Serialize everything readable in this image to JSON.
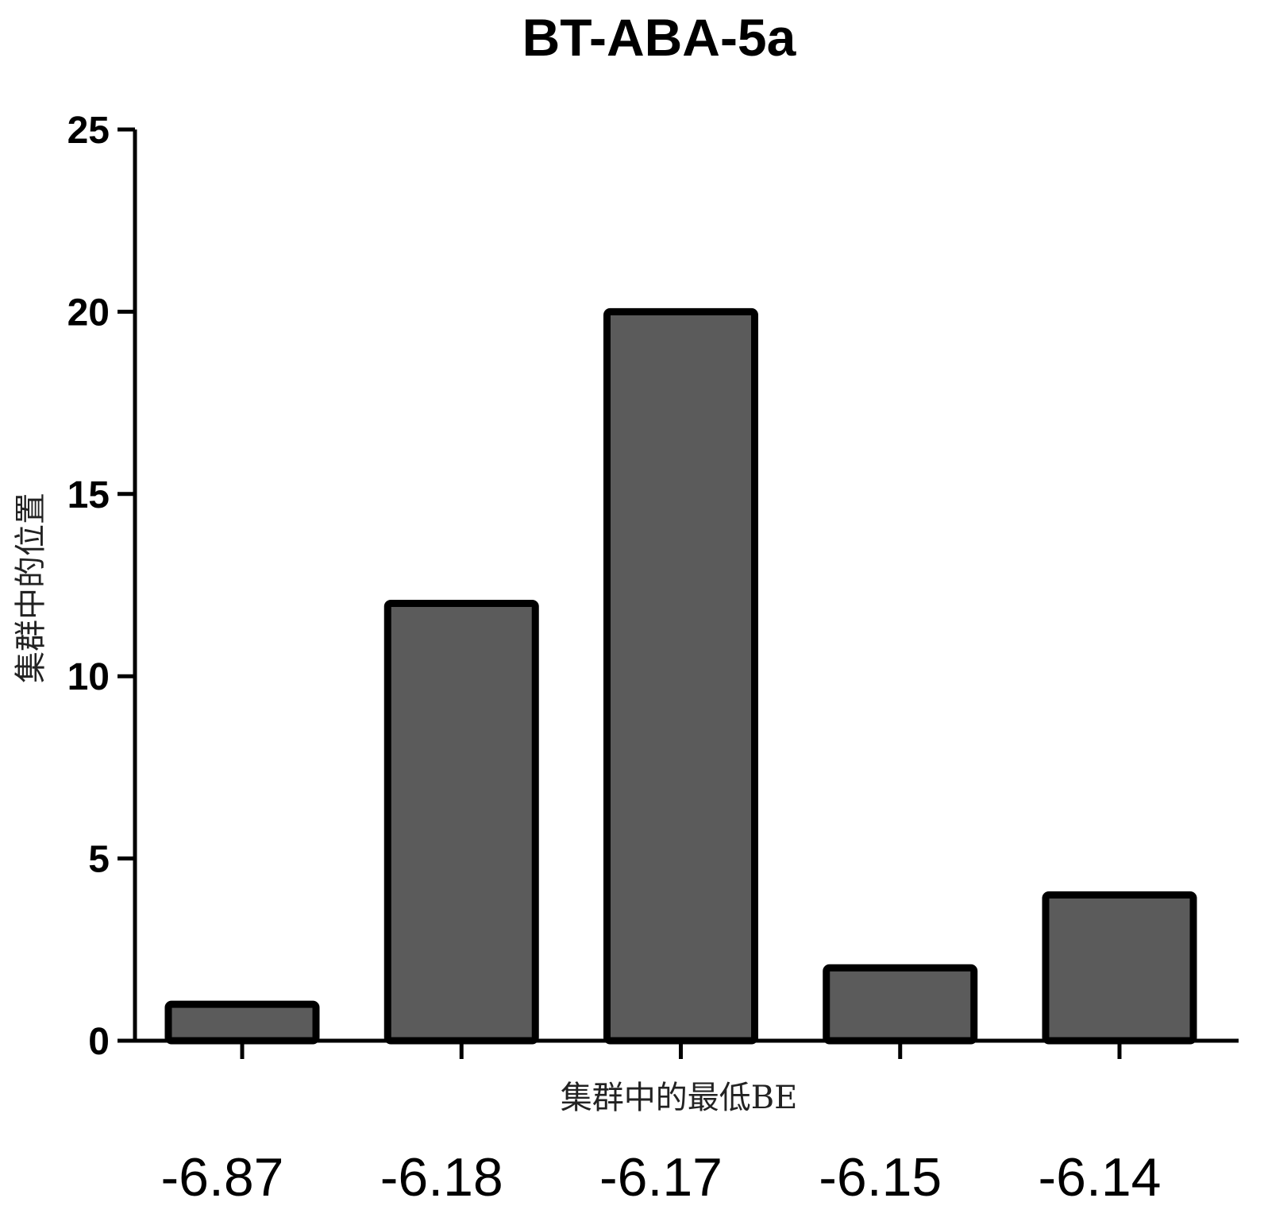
{
  "chart_data": {
    "type": "bar",
    "title": "BT-ABA-5a",
    "xlabel": "集群中的最低BE",
    "ylabel": "集群中的位置",
    "categories": [
      "-6.87",
      "-6.18",
      "-6.17",
      "-6.15",
      "-6.14"
    ],
    "values": [
      1,
      12,
      20,
      2,
      4
    ],
    "ylim": [
      0,
      25
    ],
    "yticks": [
      "0",
      "5",
      "10",
      "15",
      "20",
      "25"
    ],
    "grid": false,
    "legend": "none",
    "colors": {
      "bar_fill": "#5b5b5b",
      "bar_stroke": "#000000",
      "axis": "#000000"
    }
  }
}
